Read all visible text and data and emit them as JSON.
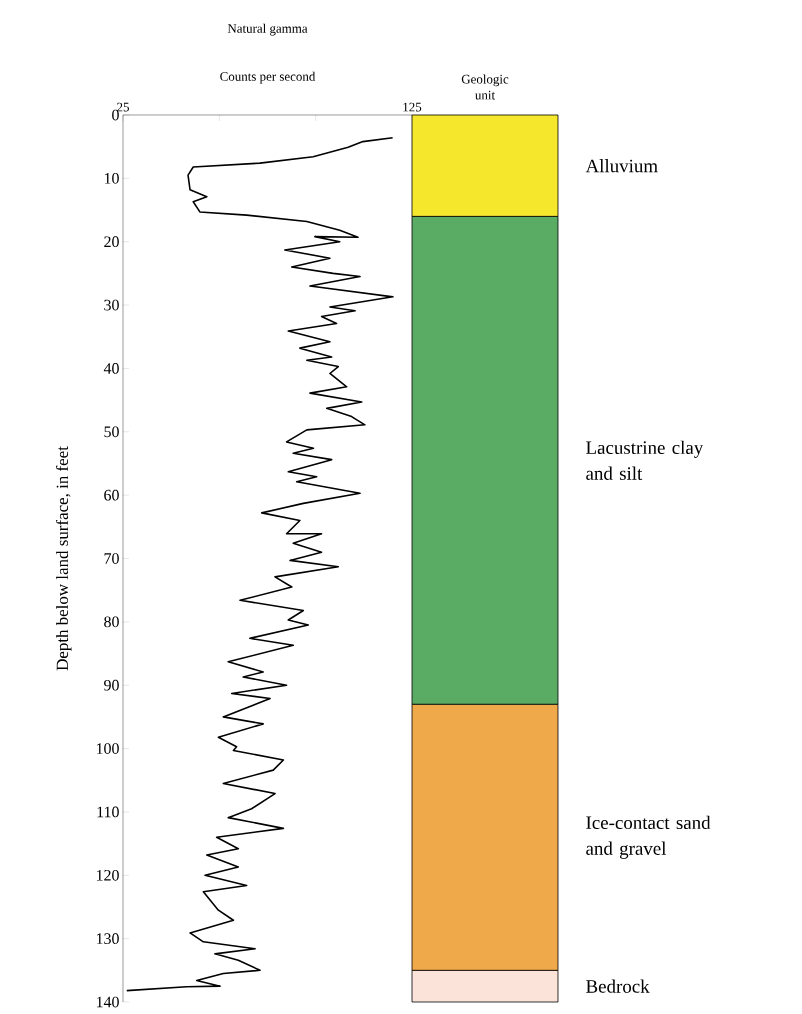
{
  "chart_data": [
    {
      "type": "line",
      "title": "Natural gamma",
      "xlabel": "Counts per second",
      "ylabel": "Depth below land surface, in feet",
      "color": "#000000",
      "x": [
        118.3,
        108,
        102.9,
        90.8,
        72.4,
        49.3,
        47.5,
        48.2,
        54,
        49.3,
        51.6,
        67.8,
        88.6,
        100,
        106.3,
        91.4,
        100,
        81,
        96.6,
        83.4,
        97.7,
        107,
        89.7,
        118.4,
        96.6,
        105.3,
        93.7,
        98.9,
        82.2,
        96.6,
        86.2,
        97.2,
        88.6,
        99.5,
        96.6,
        102.4,
        89.7,
        107.6,
        95.5,
        104.1,
        108.7,
        88.6,
        81.6,
        90.9,
        83.9,
        97.2,
        82.2,
        92,
        85.1,
        107,
        87.4,
        73,
        86.2,
        81.6,
        93.7,
        83.9,
        93.7,
        82.8,
        99.5,
        77.6,
        83.4,
        65.5,
        87.4,
        82.2,
        89.1,
        68.9,
        83.9,
        61.4,
        73.5,
        66.6,
        81.6,
        62.6,
        75.9,
        59.7,
        73.5,
        58,
        64.3,
        63.2,
        80.5,
        77,
        59.7,
        77.6,
        69.5,
        61.4,
        80.5,
        57.4,
        64.9,
        54,
        64.9,
        53.4,
        67.8,
        52.8,
        58,
        63.2,
        48.2,
        52.8,
        70.7,
        56.8,
        64.9,
        72.4,
        59.7,
        50.5,
        58.6,
        47,
        26.3
      ],
      "values": [
        3.6,
        4.2,
        5.1,
        6.6,
        7.6,
        8.2,
        9.5,
        11.8,
        12.9,
        13.7,
        15.3,
        15.8,
        16.8,
        18.2,
        19.3,
        19.2,
        20,
        21.3,
        22.6,
        24,
        25,
        25.5,
        27,
        28.7,
        30.3,
        30.9,
        31.8,
        32.9,
        34.1,
        35.8,
        36.8,
        38.2,
        38.7,
        39.7,
        40.8,
        42.9,
        43.9,
        45.3,
        46.3,
        47.6,
        48.9,
        49.7,
        51.6,
        52.6,
        53.4,
        54.4,
        56.3,
        57.1,
        57.9,
        59.7,
        61.3,
        62.8,
        64,
        66.1,
        66.1,
        67.6,
        69,
        70.3,
        71.3,
        72.9,
        74.5,
        76.6,
        78.2,
        79.7,
        80.5,
        82.6,
        83.7,
        86.3,
        87.9,
        88.7,
        90,
        91.3,
        92.1,
        95,
        96.1,
        98.2,
        99.7,
        100.3,
        101.8,
        103.4,
        105.5,
        107.1,
        109.5,
        110.9,
        112.6,
        114,
        115.8,
        116.8,
        118.7,
        120,
        121.6,
        122.6,
        125.5,
        127.1,
        129.1,
        130.5,
        131.6,
        132.4,
        133.4,
        135,
        135.5,
        136.6,
        137.5,
        137.6,
        138.2
      ],
      "xlim": [
        25,
        125
      ],
      "xticks": [
        25,
        {
          "value": 58.33,
          "label": null
        },
        {
          "value": 91.67,
          "label": null
        },
        125
      ],
      "ylim": [
        140,
        0
      ],
      "yticks": [
        0,
        10,
        20,
        30,
        40,
        50,
        60,
        70,
        80,
        90,
        100,
        110,
        120,
        130,
        140
      ]
    },
    {
      "type": "bar",
      "stacked": true,
      "title": "Geologic unit",
      "categories": [
        null
      ],
      "ylim": [
        140,
        0
      ],
      "tick_labels": false,
      "series": [
        {
          "name": "Alluvium",
          "color": "#f5e72c",
          "values": [
            16
          ]
        },
        {
          "name": "Lacustrine clay and silt",
          "color": "#5aab63",
          "values": [
            77
          ]
        },
        {
          "name": "Ice-contact sand and gravel",
          "color": "#f0a94a",
          "values": [
            42
          ]
        },
        {
          "name": "Bedrock",
          "color": "#fbe3d9",
          "values": [
            5
          ]
        }
      ]
    }
  ]
}
